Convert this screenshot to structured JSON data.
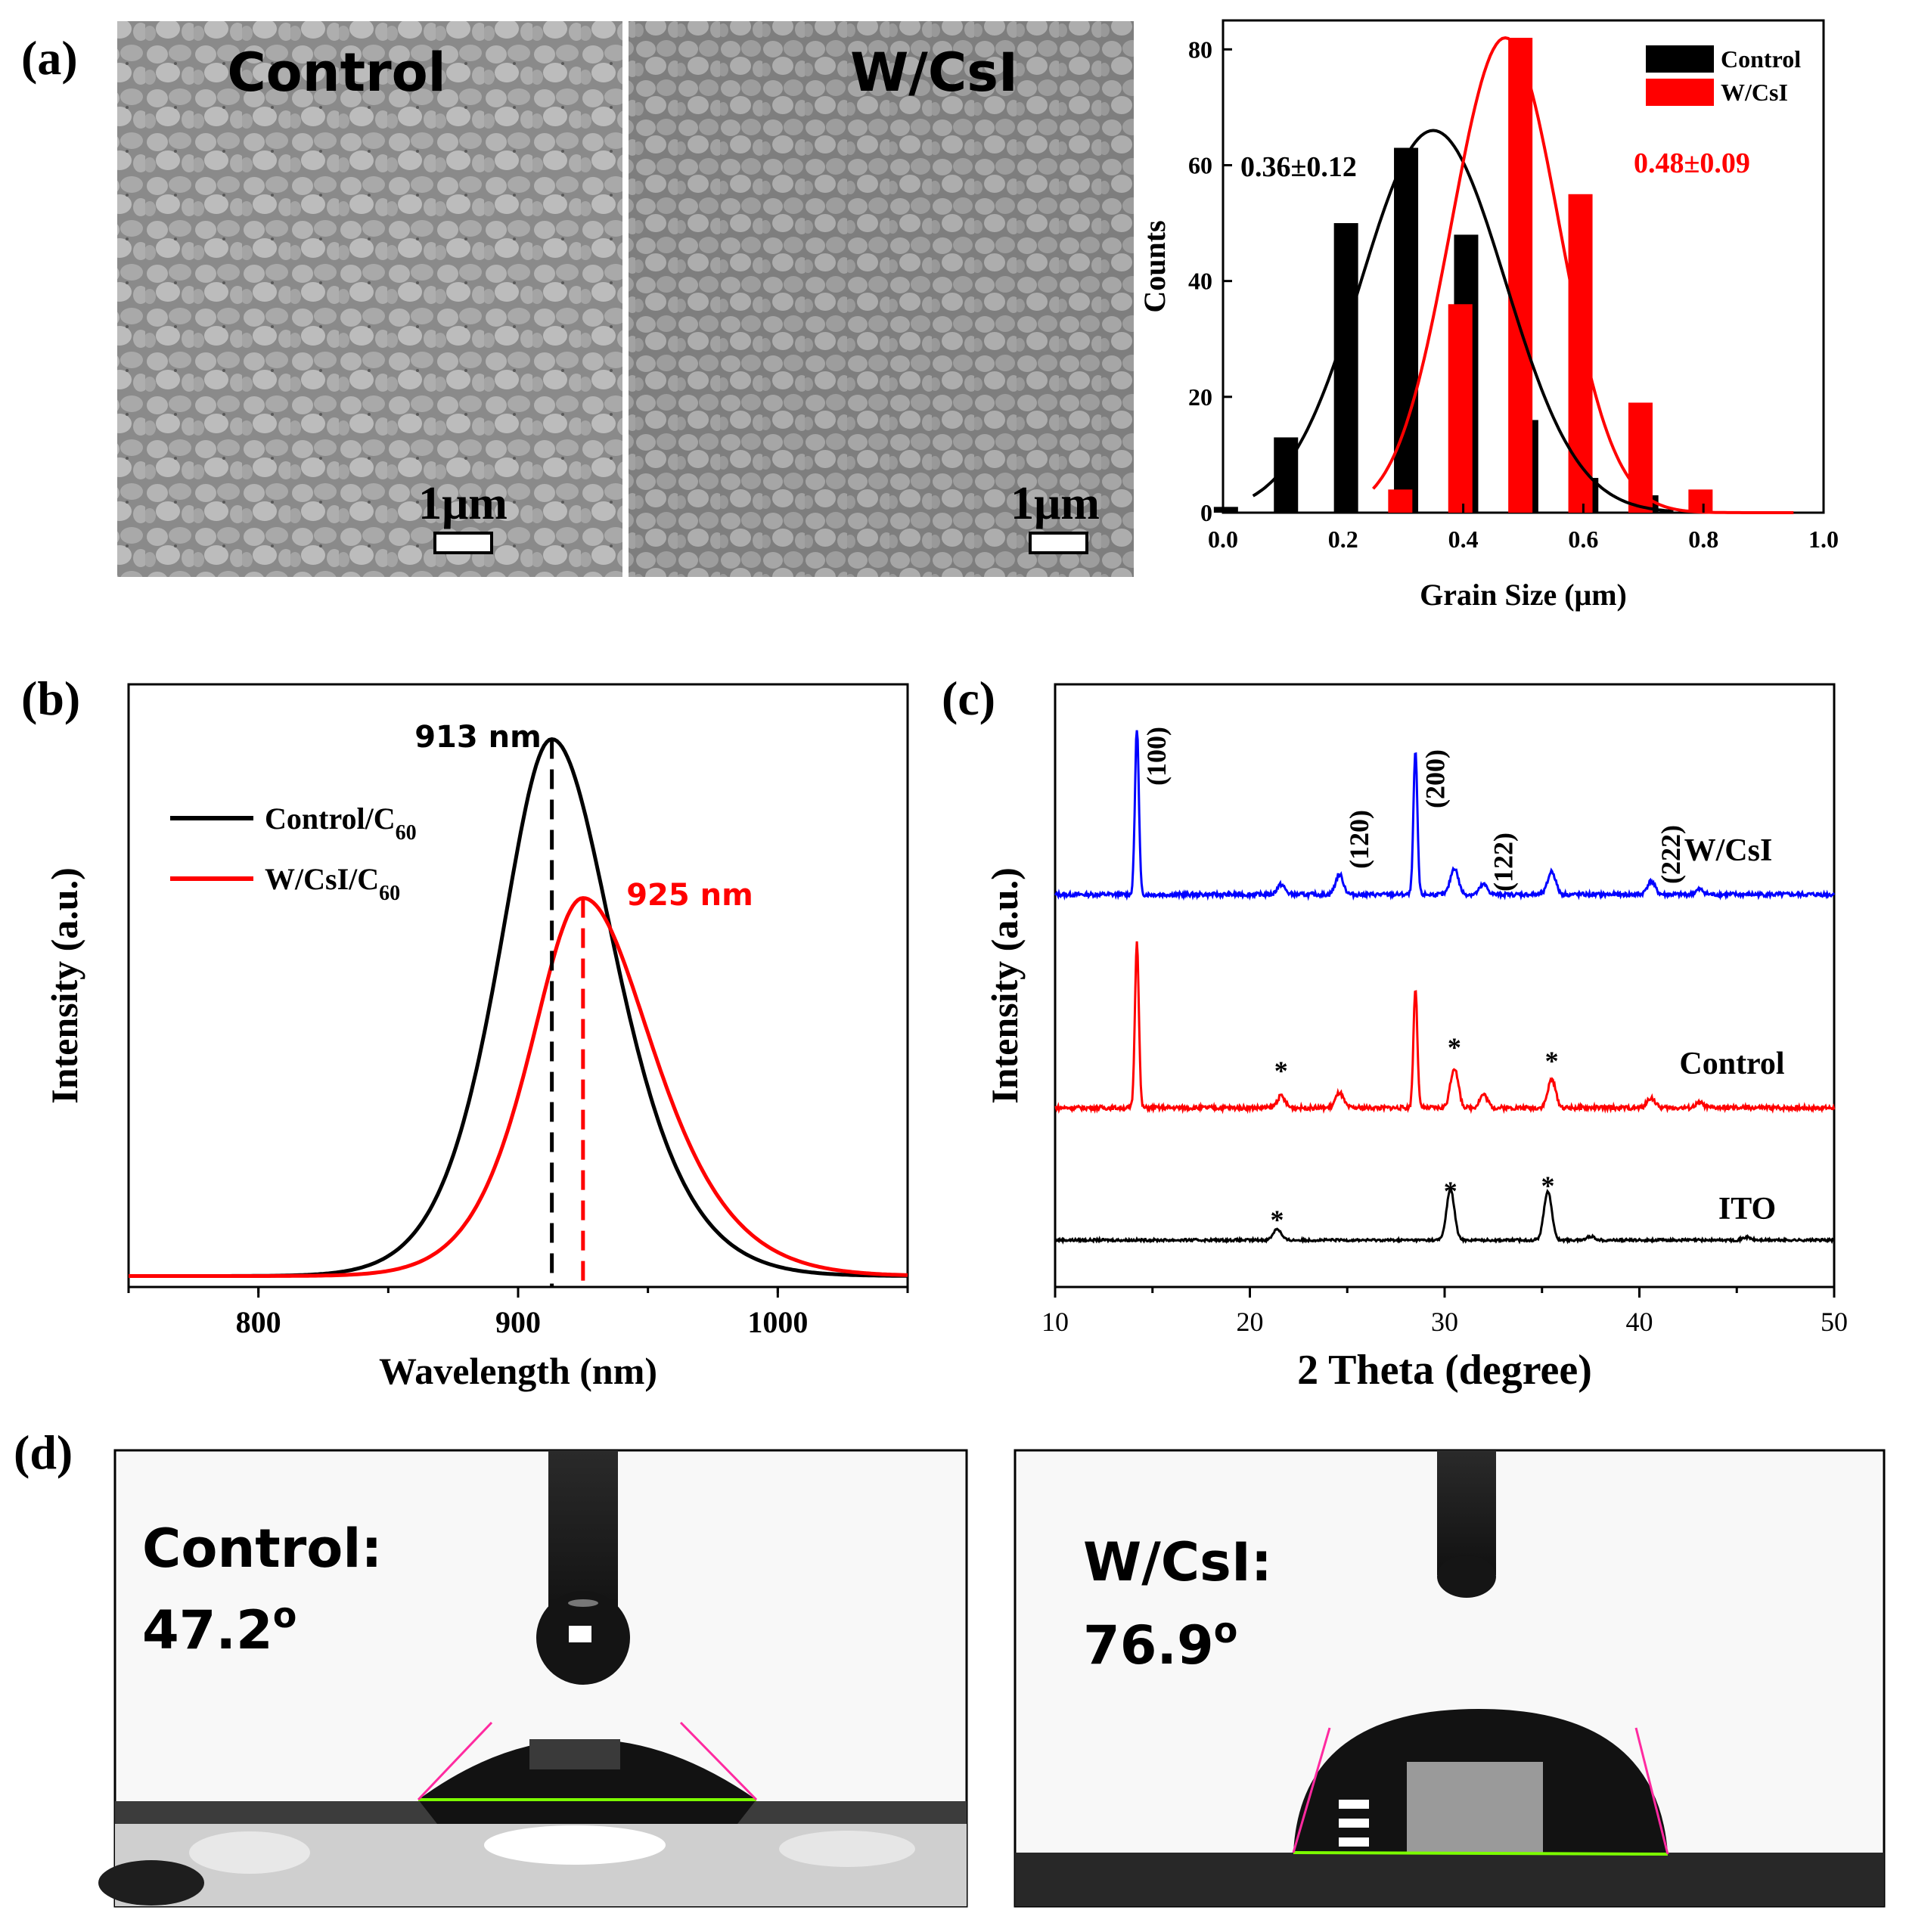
{
  "panels": {
    "a": {
      "letter": "(a)",
      "sem_left": {
        "label": "Control",
        "scale": "1μm"
      },
      "sem_right": {
        "label": "W/CsI",
        "scale": "1μm"
      }
    },
    "b": {
      "letter": "(b)",
      "peak_black": "913 nm",
      "peak_red": "925 nm"
    },
    "c": {
      "letter": "(c)"
    },
    "d": {
      "letter": "(d)",
      "left": {
        "label": "Control:",
        "angle": "47.2",
        "deg": "o"
      },
      "right": {
        "label": "W/CsI:",
        "angle": "76.9",
        "deg": "o"
      }
    }
  },
  "colors": {
    "black": "#000000",
    "red": "#ff0000",
    "blue": "#0000ff",
    "magenta": "#ff2aa0",
    "green": "#7cfc00"
  },
  "chart_data": [
    {
      "id": "grain",
      "type": "bar",
      "xlabel": "Grain Size (μm)",
      "ylabel": "Counts",
      "xlim": [
        0,
        1.0
      ],
      "ylim": [
        0,
        85
      ],
      "xticks": [
        "0.0",
        "0.2",
        "0.4",
        "0.6",
        "0.8",
        "1.0"
      ],
      "yticks": [
        "0",
        "20",
        "40",
        "60",
        "80"
      ],
      "legend_position": "top-right",
      "series": [
        {
          "name": "Control",
          "color": "#000000",
          "x": [
            0.025,
            0.125,
            0.225,
            0.325,
            0.425,
            0.525,
            0.625,
            0.725
          ],
          "values": [
            1,
            13,
            50,
            63,
            48,
            16,
            6,
            3
          ]
        },
        {
          "name": "W/CsI",
          "color": "#ff0000",
          "x": [
            0.275,
            0.375,
            0.475,
            0.575,
            0.675,
            0.775
          ],
          "values": [
            4,
            36,
            82,
            55,
            19,
            4
          ]
        }
      ],
      "fits": [
        {
          "color": "#000000",
          "mean": 0.35,
          "sigma": 0.12,
          "amp": 66,
          "range": [
            0.05,
            0.75
          ]
        },
        {
          "color": "#ff0000",
          "mean": 0.47,
          "sigma": 0.09,
          "amp": 82,
          "range": [
            0.25,
            0.95
          ]
        }
      ],
      "annotations": [
        {
          "text": "0.36±0.12",
          "color": "#000000"
        },
        {
          "text": "0.48±0.09",
          "color": "#ff0000"
        }
      ]
    },
    {
      "id": "pl",
      "type": "line",
      "xlabel": "Wavelength (nm)",
      "ylabel": "Intensity (a.u.)",
      "xlim": [
        750,
        1050
      ],
      "ylim": [
        0,
        1.1
      ],
      "xticks": [
        "800",
        "900",
        "1000"
      ],
      "legend_position": "top-left",
      "series": [
        {
          "name": "Control/C",
          "sub": "60",
          "color": "#000000",
          "peak": 913,
          "amp": 0.98,
          "sigma_left": 24,
          "sigma_right": 29,
          "base": 0.02
        },
        {
          "name": "W/CsI/C",
          "sub": "60",
          "color": "#ff0000",
          "peak": 925,
          "amp": 0.69,
          "sigma_left": 24,
          "sigma_right": 32,
          "base": 0.02
        }
      ],
      "markers": [
        {
          "x": 913,
          "color": "#000000"
        },
        {
          "x": 925,
          "color": "#ff0000"
        }
      ]
    },
    {
      "id": "xrd",
      "type": "line",
      "xlabel": "2 Theta (degree)",
      "ylabel": "Intensity (a.u.)",
      "xlim": [
        10,
        50
      ],
      "xticks": [
        "10",
        "20",
        "30",
        "40",
        "50"
      ],
      "series": [
        {
          "name": "W/CsI",
          "color": "#0000ff",
          "peaks": [
            [
              14.2,
              1.0
            ],
            [
              21.6,
              0.06
            ],
            [
              24.6,
              0.12
            ],
            [
              28.5,
              0.86
            ],
            [
              30.5,
              0.16
            ],
            [
              32.0,
              0.06
            ],
            [
              35.5,
              0.14
            ],
            [
              40.6,
              0.08
            ],
            [
              43.1,
              0.03
            ]
          ]
        },
        {
          "name": "Control",
          "color": "#ff0000",
          "peaks": [
            [
              14.2,
              1.0
            ],
            [
              21.6,
              0.07
            ],
            [
              24.6,
              0.09
            ],
            [
              28.5,
              0.72
            ],
            [
              30.5,
              0.24
            ],
            [
              32.0,
              0.08
            ],
            [
              35.5,
              0.17
            ],
            [
              40.6,
              0.06
            ],
            [
              43.1,
              0.03
            ]
          ]
        },
        {
          "name": "ITO",
          "color": "#000000",
          "peaks": [
            [
              21.4,
              0.12
            ],
            [
              30.3,
              0.54
            ],
            [
              35.3,
              0.52
            ],
            [
              37.5,
              0.04
            ],
            [
              45.5,
              0.03
            ]
          ]
        }
      ],
      "hkl_labels": [
        {
          "text": "(100)",
          "x": 14.2
        },
        {
          "text": "(120)",
          "x": 24.6
        },
        {
          "text": "(200)",
          "x": 28.5
        },
        {
          "text": "(122)",
          "x": 32.0
        },
        {
          "text": "(222)",
          "x": 40.6
        }
      ],
      "star_label": "*",
      "stars_control": [
        21.6,
        30.5,
        35.5
      ],
      "stars_ito": [
        21.4,
        30.3,
        35.3
      ]
    }
  ]
}
